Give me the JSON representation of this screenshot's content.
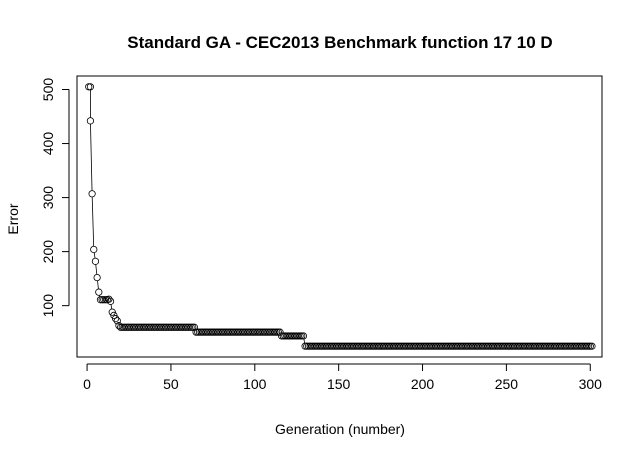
{
  "chart_data": {
    "type": "line",
    "title": "Standard GA - CEC2013 Benchmark function  17 10 D",
    "xlabel": "Generation (number)",
    "ylabel": "Error",
    "xlim": [
      -6,
      307
    ],
    "ylim": [
      5,
      525
    ],
    "x_ticks": [
      0,
      50,
      100,
      150,
      200,
      250,
      300
    ],
    "y_ticks": [
      100,
      200,
      300,
      400,
      500
    ],
    "markers": "open-circle",
    "line_color": "#000000",
    "grid": false,
    "series": [
      {
        "segments": [
          [
            1,
            2,
            505
          ],
          [
            2,
            2,
            442
          ],
          [
            3,
            3,
            307
          ],
          [
            4,
            4,
            204
          ],
          [
            5,
            5,
            182
          ],
          [
            6,
            6,
            152
          ],
          [
            7,
            7,
            125
          ],
          [
            8,
            8,
            111
          ],
          [
            9,
            12,
            111
          ],
          [
            13,
            13,
            112
          ],
          [
            14,
            14,
            108
          ],
          [
            15,
            15,
            88
          ],
          [
            16,
            16,
            82
          ],
          [
            17,
            17,
            76
          ],
          [
            18,
            18,
            72
          ],
          [
            19,
            19,
            63
          ],
          [
            20,
            64,
            60
          ],
          [
            65,
            115,
            51
          ],
          [
            116,
            129,
            44
          ],
          [
            130,
            301,
            25
          ]
        ]
      }
    ]
  }
}
